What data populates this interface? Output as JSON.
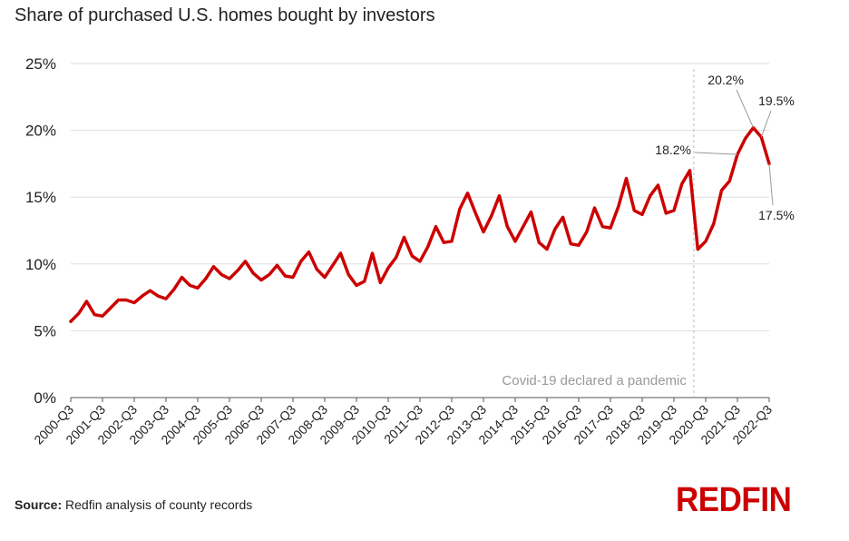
{
  "chart_data": {
    "type": "line",
    "title": "Share of purchased U.S. homes bought by investors",
    "source_label": "Source:",
    "source_text": "Redfin analysis of county records",
    "brand": "REDFIN",
    "brand_color": "#cc0000",
    "line_color": "#cc0000",
    "grid": true,
    "ylim": [
      0,
      25
    ],
    "yticks": [
      0,
      5,
      10,
      15,
      20,
      25
    ],
    "ytick_labels": [
      "0%",
      "5%",
      "10%",
      "15%",
      "20%",
      "25%"
    ],
    "x_tick_labels": [
      "2000-Q3",
      "2001-Q3",
      "2002-Q3",
      "2003-Q3",
      "2004-Q3",
      "2005-Q3",
      "2006-Q3",
      "2007-Q3",
      "2008-Q3",
      "2009-Q3",
      "2010-Q3",
      "2011-Q3",
      "2012-Q3",
      "2013-Q3",
      "2014-Q3",
      "2015-Q3",
      "2016-Q3",
      "2017-Q3",
      "2018-Q3",
      "2019-Q3",
      "2020-Q3",
      "2021-Q3",
      "2022-Q3"
    ],
    "series": [
      {
        "values": [
          5.7,
          6.3,
          7.2,
          6.2,
          6.1,
          6.7,
          7.3,
          7.3,
          7.1,
          7.6,
          8.0,
          7.6,
          7.4,
          8.1,
          9.0,
          8.4,
          8.2,
          8.9,
          9.8,
          9.2,
          8.9,
          9.5,
          10.2,
          9.3,
          8.8,
          9.2,
          9.9,
          9.1,
          9.0,
          10.2,
          10.9,
          9.6,
          9.0,
          9.9,
          10.8,
          9.2,
          8.4,
          8.7,
          10.8,
          8.6,
          9.7,
          10.5,
          12.0,
          10.6,
          10.2,
          11.3,
          12.8,
          11.6,
          11.7,
          14.1,
          15.3,
          13.8,
          12.4,
          13.6,
          15.1,
          12.8,
          11.7,
          12.8,
          13.9,
          11.6,
          11.1,
          12.6,
          13.5,
          11.5,
          11.4,
          12.4,
          14.2,
          12.8,
          12.7,
          14.3,
          16.4,
          14.0,
          13.7,
          15.1,
          15.9,
          13.8,
          14.0,
          16.0,
          17.0,
          11.1,
          11.7,
          13.0,
          15.5,
          16.2,
          18.2,
          19.4,
          20.2,
          19.5,
          17.5
        ]
      }
    ],
    "event": {
      "label": "Covid-19 declared a pandemic",
      "x_index": 78.5
    },
    "annotations": [
      {
        "text": "18.2%",
        "point_index": 84
      },
      {
        "text": "20.2%",
        "point_index": 86
      },
      {
        "text": "19.5%",
        "point_index": 87
      },
      {
        "text": "17.5%",
        "point_index": 88
      }
    ]
  }
}
